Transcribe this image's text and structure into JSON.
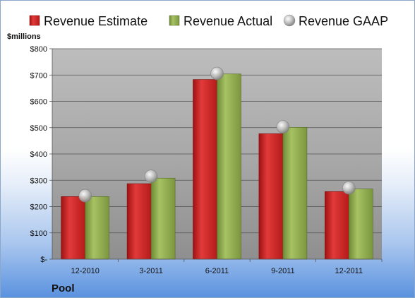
{
  "chart_data": {
    "type": "bar",
    "unit_label": "$millions",
    "company": "Pool",
    "categories": [
      "12-2010",
      "3-2011",
      "6-2011",
      "9-2011",
      "12-2011"
    ],
    "yticks": [
      "$-",
      "$100",
      "$200",
      "$300",
      "$400",
      "$500",
      "$600",
      "$700",
      "$800"
    ],
    "ylim": [
      0,
      800
    ],
    "grid": true,
    "legend_position": "top",
    "series": [
      {
        "name": "Revenue Estimate",
        "kind": "bar",
        "color": "#cc2222",
        "values": [
          238,
          287,
          683,
          477,
          257
        ]
      },
      {
        "name": "Revenue Actual",
        "kind": "bar",
        "color": "#8aa84a",
        "values": [
          238,
          308,
          704,
          501,
          267
        ]
      },
      {
        "name": "Revenue GAAP",
        "kind": "marker",
        "color": "#b0b0b0",
        "values": [
          241,
          315,
          706,
          503,
          271
        ]
      }
    ]
  }
}
